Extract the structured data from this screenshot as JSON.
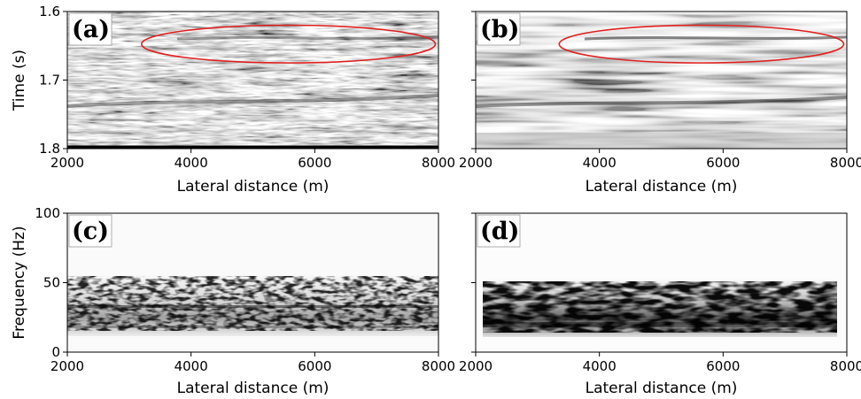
{
  "chart_data": [
    {
      "type": "heatmap",
      "panel_label": "(a)",
      "xlabel": "Lateral distance (m)",
      "ylabel": "Time (s)",
      "xlim": [
        2000,
        8000
      ],
      "ylim": [
        1.6,
        1.8
      ],
      "y_inverted": true,
      "x_ticks": [
        "2000",
        "4000",
        "6000",
        "8000"
      ],
      "y_ticks": [
        "1.6",
        "1.7",
        "1.8"
      ],
      "colormap": "grayscale",
      "annotation": {
        "shape": "ellipse",
        "color": "#e02020",
        "x_range": [
          3200,
          7950
        ],
        "y_range": [
          1.62,
          1.675
        ]
      }
    },
    {
      "type": "heatmap",
      "panel_label": "(b)",
      "xlabel": "Lateral distance (m)",
      "ylabel": "",
      "xlim": [
        2000,
        8000
      ],
      "ylim": [
        1.6,
        1.8
      ],
      "y_inverted": true,
      "x_ticks": [
        "2000",
        "4000",
        "6000",
        "8000"
      ],
      "y_ticks": [
        "1.6",
        "1.7",
        "1.8"
      ],
      "y_tick_labels_shown": false,
      "colormap": "grayscale",
      "annotation": {
        "shape": "ellipse",
        "color": "#e02020",
        "x_range": [
          3350,
          7950
        ],
        "y_range": [
          1.62,
          1.675
        ]
      }
    },
    {
      "type": "heatmap",
      "panel_label": "(c)",
      "xlabel": "Lateral distance (m)",
      "ylabel": "Frequency (Hz)",
      "xlim": [
        2000,
        8000
      ],
      "ylim": [
        0,
        100
      ],
      "x_ticks": [
        "2000",
        "4000",
        "6000",
        "8000"
      ],
      "y_ticks": [
        "0",
        "50",
        "100"
      ],
      "colormap": "gray_r",
      "energy_band_hz": [
        15,
        50
      ]
    },
    {
      "type": "heatmap",
      "panel_label": "(d)",
      "xlabel": "Lateral distance (m)",
      "ylabel": "",
      "xlim": [
        2000,
        8000
      ],
      "ylim": [
        0,
        100
      ],
      "x_ticks": [
        "2000",
        "4000",
        "6000",
        "8000"
      ],
      "y_ticks": [
        "0",
        "50",
        "100"
      ],
      "y_tick_labels_shown": false,
      "colormap": "gray_r",
      "energy_band_hz": [
        15,
        50
      ]
    }
  ]
}
